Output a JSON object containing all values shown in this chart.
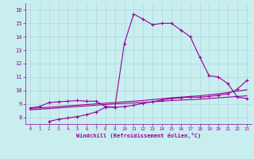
{
  "xlabel": "Windchill (Refroidissement éolien,°C)",
  "bg_color": "#c8eef0",
  "line_color": "#990099",
  "grid_color": "#b0d8dc",
  "xlim": [
    -0.5,
    23.5
  ],
  "ylim": [
    7.5,
    16.5
  ],
  "xticks": [
    0,
    1,
    2,
    3,
    4,
    5,
    6,
    7,
    8,
    9,
    10,
    11,
    12,
    13,
    14,
    15,
    16,
    17,
    18,
    19,
    20,
    21,
    22,
    23
  ],
  "yticks": [
    8,
    9,
    10,
    11,
    12,
    13,
    14,
    15,
    16
  ],
  "line1_x": [
    0,
    1,
    2,
    3,
    4,
    5,
    6,
    7,
    8,
    9,
    10,
    11,
    12,
    13,
    14,
    15,
    16,
    17,
    18,
    19,
    20,
    21,
    22,
    23
  ],
  "line1_y": [
    8.7,
    8.8,
    9.1,
    9.15,
    9.2,
    9.25,
    9.2,
    9.2,
    8.8,
    8.75,
    13.5,
    15.7,
    15.3,
    14.9,
    15.0,
    15.0,
    14.5,
    14.0,
    12.5,
    11.1,
    11.0,
    10.5,
    9.5,
    9.4
  ],
  "line2_x": [
    2,
    3,
    4,
    5,
    6,
    7,
    8,
    9,
    10,
    11,
    12,
    13,
    14,
    15,
    16,
    17,
    18,
    19,
    20,
    21,
    22,
    23
  ],
  "line2_y": [
    7.7,
    7.85,
    7.95,
    8.05,
    8.2,
    8.4,
    8.75,
    8.75,
    8.8,
    8.9,
    9.05,
    9.15,
    9.3,
    9.4,
    9.45,
    9.5,
    9.5,
    9.55,
    9.65,
    9.75,
    10.1,
    10.75
  ],
  "line3_x": [
    0,
    3,
    6,
    9,
    12,
    15,
    18,
    20,
    21,
    22,
    23
  ],
  "line3_y": [
    8.55,
    8.7,
    8.85,
    9.0,
    9.1,
    9.25,
    9.35,
    9.45,
    9.5,
    9.55,
    9.6
  ],
  "line4_x": [
    0,
    3,
    6,
    9,
    12,
    15,
    18,
    20,
    21,
    22,
    23
  ],
  "line4_y": [
    8.65,
    8.8,
    8.95,
    9.1,
    9.25,
    9.45,
    9.6,
    9.75,
    9.85,
    9.95,
    10.05
  ]
}
